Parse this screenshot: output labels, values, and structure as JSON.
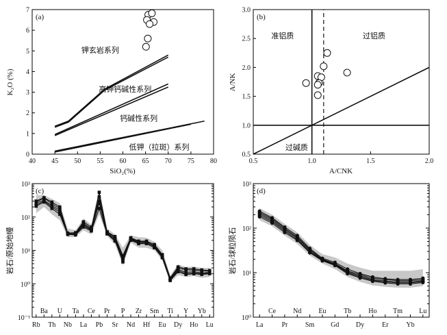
{
  "chart_data": [
    {
      "id": "a",
      "type": "scatter",
      "panel_label": "(a)",
      "xlabel": "SiO₂(%)",
      "ylabel": "K₂O (%)",
      "xlim": [
        40,
        80
      ],
      "ylim": [
        0,
        7
      ],
      "xticks": [
        40,
        45,
        50,
        55,
        60,
        65,
        70,
        75,
        80
      ],
      "yticks": [
        0,
        1,
        2,
        3,
        4,
        5,
        6,
        7
      ],
      "boundary_lines": [
        {
          "x": [
            45,
            48,
            56,
            70
          ],
          "y": [
            1.35,
            1.6,
            3.15,
            4.8
          ]
        },
        {
          "x": [
            45,
            48,
            56,
            70
          ],
          "y": [
            1.3,
            1.55,
            3.1,
            4.7
          ]
        },
        {
          "x": [
            45,
            70
          ],
          "y": [
            0.95,
            3.4
          ]
        },
        {
          "x": [
            45,
            70
          ],
          "y": [
            0.9,
            3.25
          ]
        },
        {
          "x": [
            45,
            78
          ],
          "y": [
            0.15,
            1.6
          ]
        },
        {
          "x": [
            45,
            75
          ],
          "y": [
            0.1,
            1.45
          ]
        }
      ],
      "field_labels": [
        {
          "text": "钾玄岩系列",
          "x": 55,
          "y": 5.05
        },
        {
          "text": "高钾钙碱性系列",
          "x": 60.5,
          "y": 3.15
        },
        {
          "text": "钙碱性系列",
          "x": 63.5,
          "y": 1.75
        },
        {
          "text": "低钾（拉斑）系列",
          "x": 68,
          "y": 0.35
        }
      ],
      "points": [
        {
          "x": 65.6,
          "y": 6.75
        },
        {
          "x": 66.4,
          "y": 6.82
        },
        {
          "x": 65.3,
          "y": 6.5
        },
        {
          "x": 66.8,
          "y": 6.4
        },
        {
          "x": 65.9,
          "y": 6.3
        },
        {
          "x": 65.5,
          "y": 5.6
        },
        {
          "x": 65.1,
          "y": 5.2
        }
      ]
    },
    {
      "id": "b",
      "type": "scatter",
      "panel_label": "(b)",
      "xlabel": "A/CNK",
      "ylabel": "A/NK",
      "xlim": [
        0.5,
        2.0
      ],
      "ylim": [
        0.5,
        3.0
      ],
      "xticks": [
        0.5,
        1.0,
        1.5,
        2.0
      ],
      "yticks": [
        0.5,
        1.0,
        1.5,
        2.0,
        2.5,
        3.0
      ],
      "boundary_lines": [
        {
          "x": [
            1.0,
            1.0
          ],
          "y": [
            0.5,
            3.0
          ],
          "style": "solid"
        },
        {
          "x": [
            1.1,
            1.1
          ],
          "y": [
            0.5,
            3.0
          ],
          "style": "dashed"
        },
        {
          "x": [
            0.5,
            2.0
          ],
          "y": [
            1.0,
            1.0
          ],
          "style": "solid"
        },
        {
          "x": [
            0.5,
            2.0
          ],
          "y": [
            0.5,
            2.0
          ],
          "style": "solid"
        }
      ],
      "field_labels": [
        {
          "text": "准铝质",
          "x": 0.75,
          "y": 2.55
        },
        {
          "text": "过铝质",
          "x": 1.53,
          "y": 2.55
        },
        {
          "text": "过碱质",
          "x": 0.87,
          "y": 0.62
        }
      ],
      "points": [
        {
          "x": 0.95,
          "y": 1.73
        },
        {
          "x": 1.05,
          "y": 1.85
        },
        {
          "x": 1.08,
          "y": 1.83
        },
        {
          "x": 1.06,
          "y": 1.73
        },
        {
          "x": 1.05,
          "y": 1.7
        },
        {
          "x": 1.1,
          "y": 2.02
        },
        {
          "x": 1.13,
          "y": 2.25
        },
        {
          "x": 1.05,
          "y": 1.52
        },
        {
          "x": 1.3,
          "y": 1.91
        }
      ]
    },
    {
      "id": "c",
      "type": "line",
      "panel_label": "(c)",
      "ylabel": "岩石/原始地幔",
      "yscale": "log",
      "ylim": [
        0.1,
        1000
      ],
      "ytick_labels": [
        "10⁻¹",
        "10⁰",
        "10¹",
        "10²",
        "10³"
      ],
      "elements": [
        "Rb",
        "Ba",
        "Th",
        "U",
        "Nb",
        "Ta",
        "La",
        "Ce",
        "Pb",
        "Pr",
        "Sr",
        "P",
        "Nd",
        "Zr",
        "Hf",
        "Sm",
        "Eu",
        "Ti",
        "Dy",
        "Y",
        "Ho",
        "Yb",
        "Lu"
      ],
      "series": [
        {
          "values": [
            280,
            370,
            250,
            180,
            33,
            33,
            65,
            45,
            550,
            35,
            24,
            6,
            23,
            18,
            18,
            14,
            7,
            1.4,
            3.0,
            2.6,
            2.6,
            2.4,
            2.4
          ]
        },
        {
          "values": [
            260,
            320,
            220,
            160,
            32,
            31,
            60,
            42,
            400,
            33,
            22,
            5,
            22,
            17,
            17,
            13,
            6.5,
            1.35,
            2.7,
            2.2,
            2.3,
            2.1,
            2.2
          ]
        },
        {
          "values": [
            230,
            300,
            200,
            140,
            31,
            30,
            55,
            40,
            260,
            32,
            20,
            4.5,
            21,
            16,
            16,
            12,
            6.5,
            1.3,
            2.5,
            2.0,
            2.1,
            2.0,
            2.1
          ]
        },
        {
          "values": [
            300,
            380,
            280,
            200,
            33,
            34,
            72,
            50,
            300,
            36,
            26,
            7,
            24,
            19,
            19,
            15,
            7.5,
            1.5,
            3.2,
            2.8,
            2.8,
            2.6,
            2.5
          ]
        },
        {
          "values": [
            210,
            280,
            180,
            120,
            30,
            29,
            50,
            38,
            180,
            31,
            19,
            5.5,
            20,
            16,
            16,
            12,
            6,
            1.25,
            2.3,
            1.9,
            2.0,
            1.9,
            2.0
          ]
        }
      ],
      "envelope": {
        "upper": [
          450,
          450,
          350,
          260,
          45,
          40,
          90,
          60,
          650,
          45,
          30,
          12,
          28,
          25,
          24,
          18,
          10,
          1.8,
          3.8,
          3.2,
          3.3,
          3.0,
          3.0
        ],
        "lower": [
          130,
          200,
          120,
          80,
          25,
          25,
          40,
          30,
          120,
          27,
          15,
          3.5,
          17,
          12,
          12,
          10,
          5,
          1.1,
          1.8,
          1.6,
          1.7,
          1.5,
          1.6
        ]
      }
    },
    {
      "id": "d",
      "type": "line",
      "panel_label": "(d)",
      "ylabel": "岩石/球粒陨石",
      "yscale": "log",
      "ylim": [
        1,
        1000
      ],
      "ytick_labels": [
        "10⁰",
        "10¹",
        "10²",
        "10³"
      ],
      "elements": [
        "La",
        "Ce",
        "Pr",
        "Nd",
        "Sm",
        "Eu",
        "Gd",
        "Tb",
        "Dy",
        "Ho",
        "Er",
        "Tm",
        "Yb",
        "Lu"
      ],
      "series": [
        {
          "values": [
            240,
            170,
            105,
            68,
            35,
            21,
            17,
            12,
            9.5,
            8,
            7.3,
            7,
            7,
            7.5
          ]
        },
        {
          "values": [
            225,
            160,
            98,
            63,
            33,
            20,
            16,
            11,
            9,
            7.5,
            7,
            6.6,
            6.6,
            7
          ]
        },
        {
          "values": [
            210,
            150,
            92,
            60,
            31,
            19.5,
            15.5,
            10.5,
            8.5,
            7,
            6.5,
            6.2,
            6.2,
            6.6
          ]
        },
        {
          "values": [
            195,
            140,
            86,
            56,
            29,
            19,
            15,
            10,
            8,
            6.7,
            6.2,
            5.9,
            5.9,
            6.3
          ]
        },
        {
          "values": [
            180,
            130,
            80,
            53,
            28,
            18.5,
            14.5,
            9.5,
            7.6,
            6.4,
            5.9,
            5.6,
            5.6,
            6
          ]
        }
      ],
      "envelope": {
        "upper": [
          280,
          200,
          125,
          80,
          42,
          26,
          22,
          16,
          13,
          11,
          11,
          11,
          11,
          12
        ],
        "lower": [
          150,
          110,
          68,
          44,
          24,
          16,
          12,
          8,
          6.2,
          5.2,
          4.8,
          4.6,
          4.6,
          5
        ]
      }
    }
  ]
}
